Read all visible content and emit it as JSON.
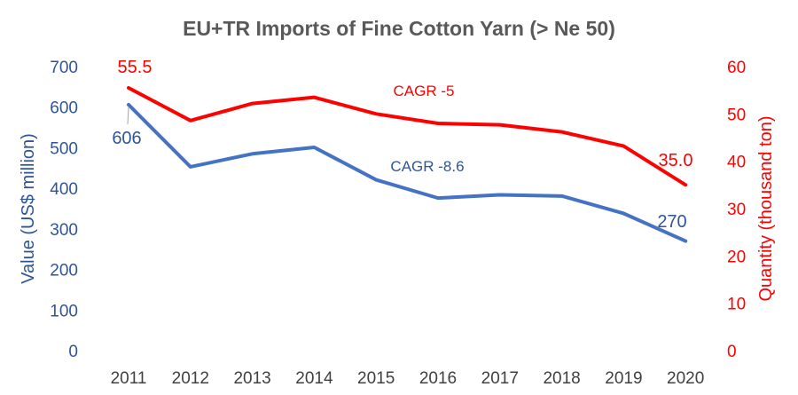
{
  "chart_data": {
    "type": "line",
    "title": "EU+TR Imports of Fine Cotton Yarn (> Ne 50)",
    "categories": [
      "2011",
      "2012",
      "2013",
      "2014",
      "2015",
      "2016",
      "2017",
      "2018",
      "2019",
      "2020"
    ],
    "y_left": {
      "label": "Value (US$ million)",
      "ylim": [
        0,
        700
      ],
      "ticks": [
        0,
        100,
        200,
        300,
        400,
        500,
        600,
        700
      ],
      "color": "#2F5597"
    },
    "y_right": {
      "label": "Quantity (thousand ton)",
      "ylim": [
        0,
        60
      ],
      "ticks": [
        0,
        10,
        20,
        30,
        40,
        50,
        60
      ],
      "color": "#FF0000"
    },
    "series": [
      {
        "axis": "left",
        "color": "#4472C4",
        "values": [
          606,
          453,
          485,
          501,
          421,
          376,
          384,
          381,
          338,
          270
        ],
        "labels": [
          {
            "index": 0,
            "text": "606"
          },
          {
            "index": 9,
            "text": "270"
          }
        ],
        "annotation": "CAGR -8.6"
      },
      {
        "axis": "right",
        "color": "#FF0000",
        "values": [
          55.5,
          48.6,
          52.2,
          53.5,
          50.0,
          48.0,
          47.7,
          46.2,
          43.2,
          35.0
        ],
        "labels": [
          {
            "index": 0,
            "text": "55.5"
          },
          {
            "index": 9,
            "text": "35.0"
          }
        ],
        "annotation": "CAGR -5"
      }
    ],
    "grid": false,
    "legend": "none"
  }
}
